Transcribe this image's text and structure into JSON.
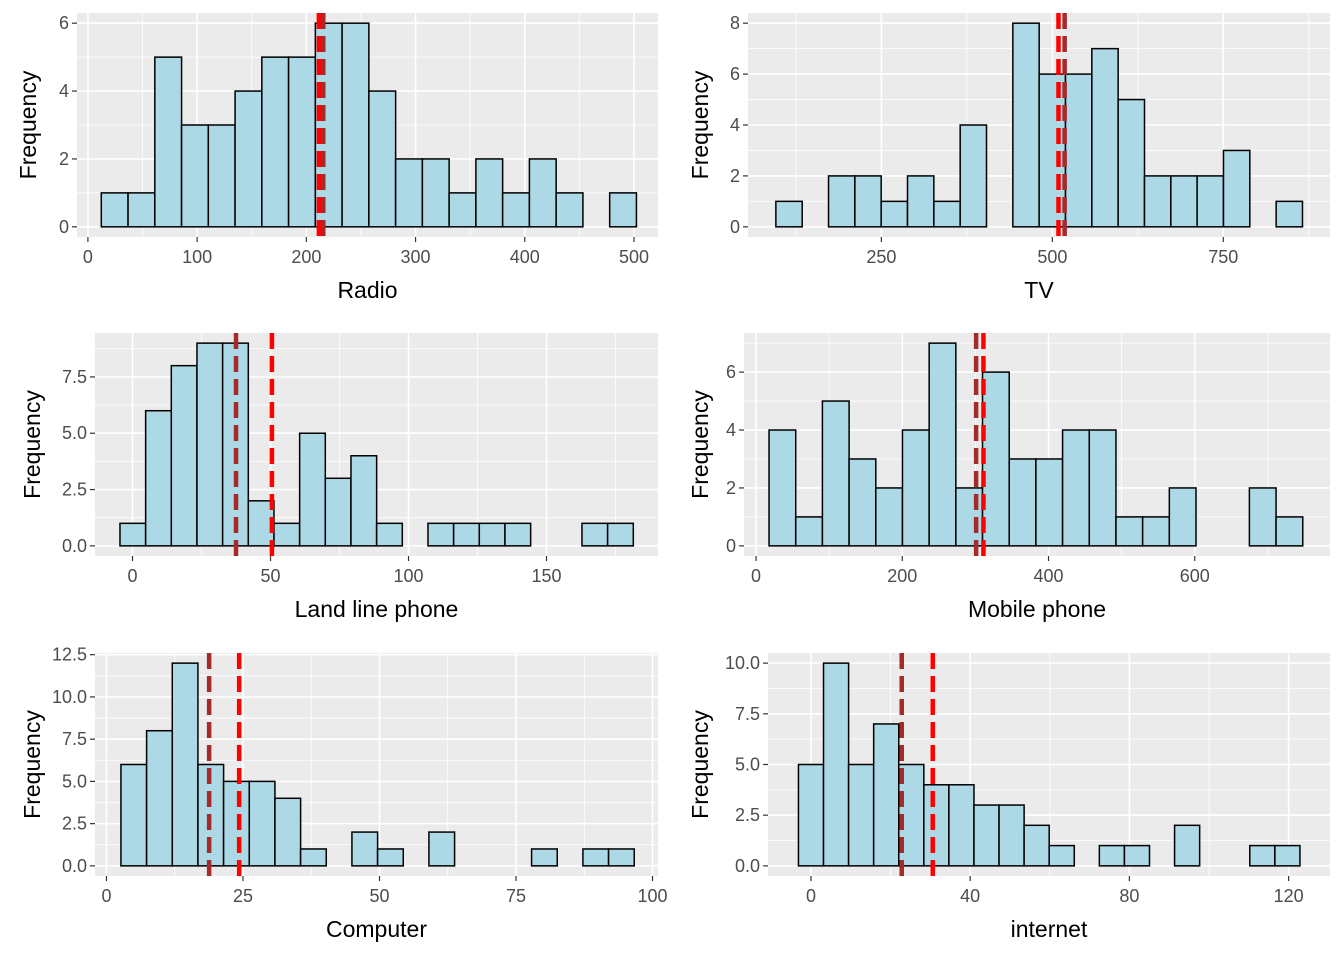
{
  "style": {
    "bar_fill": "#add8e6",
    "bar_stroke": "#000000",
    "panel_bg": "#ebebeb",
    "grid": "#ffffff",
    "mean_line_color": "#ff0000",
    "median_line_color": "#a52a2a",
    "line_style": "dashed"
  },
  "chart_data": [
    {
      "type": "bar",
      "xlabel": "Radio",
      "ylabel": "Frequency",
      "bin_width": 24.5,
      "bin_centers": [
        24.5,
        49,
        73.5,
        98,
        122.5,
        147,
        171.5,
        196,
        220.5,
        245,
        269.5,
        294,
        318.5,
        343,
        367.5,
        392,
        416.5,
        441,
        465.5,
        490
      ],
      "counts": [
        1,
        1,
        5,
        3,
        3,
        4,
        5,
        5,
        6,
        6,
        4,
        2,
        2,
        1,
        2,
        1,
        2,
        1,
        0,
        1
      ],
      "xlim": [
        -10,
        522
      ],
      "ylim": [
        -0.3,
        6.3
      ],
      "x_ticks": [
        0,
        100,
        200,
        300,
        400,
        500
      ],
      "x_tick_labels": [
        "0",
        "100",
        "200",
        "300",
        "400",
        "500"
      ],
      "y_ticks": [
        0,
        2,
        4,
        6
      ],
      "y_tick_labels": [
        "0",
        "2",
        "4",
        "6"
      ],
      "mean": 211.5,
      "median": 215.5
    },
    {
      "type": "bar",
      "xlabel": "TV",
      "ylabel": "Frequency",
      "bin_width": 38.5,
      "bin_centers": [
        115,
        153.5,
        192,
        230.5,
        269,
        307.5,
        346,
        384.5,
        423,
        461.5,
        500,
        538.5,
        577,
        615.5,
        654,
        692.5,
        731,
        769.5,
        808,
        846.5
      ],
      "counts": [
        1,
        0,
        2,
        2,
        1,
        2,
        1,
        4,
        0,
        8,
        6,
        6,
        7,
        5,
        2,
        2,
        2,
        3,
        0,
        1
      ],
      "xlim": [
        55,
        906
      ],
      "ylim": [
        -0.4,
        8.4
      ],
      "x_ticks": [
        250,
        500,
        750
      ],
      "x_tick_labels": [
        "250",
        "500",
        "750"
      ],
      "y_ticks": [
        0,
        2,
        4,
        6,
        8
      ],
      "y_tick_labels": [
        "0",
        "2",
        "4",
        "6",
        "8"
      ],
      "mean": 509,
      "median": 518
    },
    {
      "type": "bar",
      "xlabel": "Land line phone",
      "ylabel": "Frequency",
      "bin_width": 9.3,
      "bin_centers": [
        0.1,
        9.4,
        18.7,
        28,
        37.3,
        46.6,
        55.9,
        65.2,
        74.5,
        83.8,
        93.1,
        102.4,
        111.7,
        121,
        130.3,
        139.6,
        148.9,
        158.2,
        167.5,
        176.8
      ],
      "counts": [
        1,
        6,
        8,
        9,
        9,
        2,
        1,
        5,
        3,
        4,
        1,
        0,
        1,
        1,
        1,
        1,
        0,
        0,
        1,
        1
      ],
      "xlim": [
        -13.6,
        190.4
      ],
      "ylim": [
        -0.45,
        9.45
      ],
      "x_ticks": [
        0,
        50,
        100,
        150
      ],
      "x_tick_labels": [
        "0",
        "50",
        "100",
        "150"
      ],
      "y_ticks": [
        0,
        2.5,
        5,
        7.5
      ],
      "y_tick_labels": [
        "0.0",
        "2.5",
        "5.0",
        "7.5"
      ],
      "mean": 50.5,
      "median": 37.5
    },
    {
      "type": "bar",
      "xlabel": "Mobile phone",
      "ylabel": "Frequency",
      "bin_width": 36.5,
      "bin_centers": [
        36,
        72.5,
        109,
        145.5,
        182,
        218.5,
        255,
        291.5,
        328,
        364.5,
        401,
        437.5,
        474,
        510.5,
        547,
        583.5,
        620,
        656.5,
        693,
        729.5
      ],
      "counts": [
        4,
        1,
        5,
        3,
        2,
        4,
        7,
        2,
        6,
        3,
        3,
        4,
        4,
        1,
        1,
        2,
        0,
        0,
        2,
        1
      ],
      "xlim": [
        -16.5,
        785
      ],
      "ylim": [
        -0.35,
        7.35
      ],
      "x_ticks": [
        0,
        200,
        400,
        600
      ],
      "x_tick_labels": [
        "0",
        "200",
        "400",
        "600"
      ],
      "y_ticks": [
        0,
        2,
        4,
        6
      ],
      "y_tick_labels": [
        "0",
        "2",
        "4",
        "6"
      ],
      "mean": 311,
      "median": 301
    },
    {
      "type": "bar",
      "xlabel": "Computer",
      "ylabel": "Frequency",
      "bin_width": 4.7,
      "bin_centers": [
        5,
        9.7,
        14.4,
        19.1,
        23.8,
        28.5,
        33.2,
        37.9,
        42.6,
        47.3,
        52,
        56.7,
        61.4,
        66.1,
        70.8,
        75.5,
        80.2,
        84.9,
        89.6,
        94.3
      ],
      "counts": [
        6,
        8,
        12,
        6,
        5,
        5,
        4,
        1,
        0,
        2,
        1,
        0,
        2,
        0,
        0,
        0,
        1,
        0,
        1,
        1
      ],
      "xlim": [
        -2.1,
        101
      ],
      "ylim": [
        -0.6,
        12.6
      ],
      "x_ticks": [
        0,
        25,
        50,
        75,
        100
      ],
      "x_tick_labels": [
        "0",
        "25",
        "50",
        "75",
        "100"
      ],
      "y_ticks": [
        0,
        2.5,
        5,
        7.5,
        10,
        12.5
      ],
      "y_tick_labels": [
        "0.0",
        "2.5",
        "5.0",
        "7.5",
        "10.0",
        "12.5"
      ],
      "mean": 24.3,
      "median": 18.8
    },
    {
      "type": "bar",
      "xlabel": "internet",
      "ylabel": "Frequency",
      "bin_width": 6.3,
      "bin_centers": [
        0,
        6.3,
        12.6,
        18.9,
        25.2,
        31.5,
        37.8,
        44.1,
        50.4,
        56.7,
        63,
        69.3,
        75.6,
        81.9,
        88.2,
        94.5,
        100.8,
        107.1,
        113.4,
        119.7
      ],
      "counts": [
        5,
        10,
        5,
        7,
        5,
        4,
        4,
        3,
        3,
        2,
        1,
        0,
        1,
        1,
        0,
        2,
        0,
        0,
        1,
        1
      ],
      "xlim": [
        -10.8,
        130.4
      ],
      "ylim": [
        -0.5,
        10.5
      ],
      "x_ticks": [
        0,
        40,
        80,
        120
      ],
      "x_tick_labels": [
        "0",
        "40",
        "80",
        "120"
      ],
      "y_ticks": [
        0,
        2.5,
        5,
        7.5,
        10
      ],
      "y_tick_labels": [
        "0.0",
        "2.5",
        "5.0",
        "7.5",
        "10.0"
      ],
      "mean": 30.6,
      "median": 22.8
    }
  ]
}
